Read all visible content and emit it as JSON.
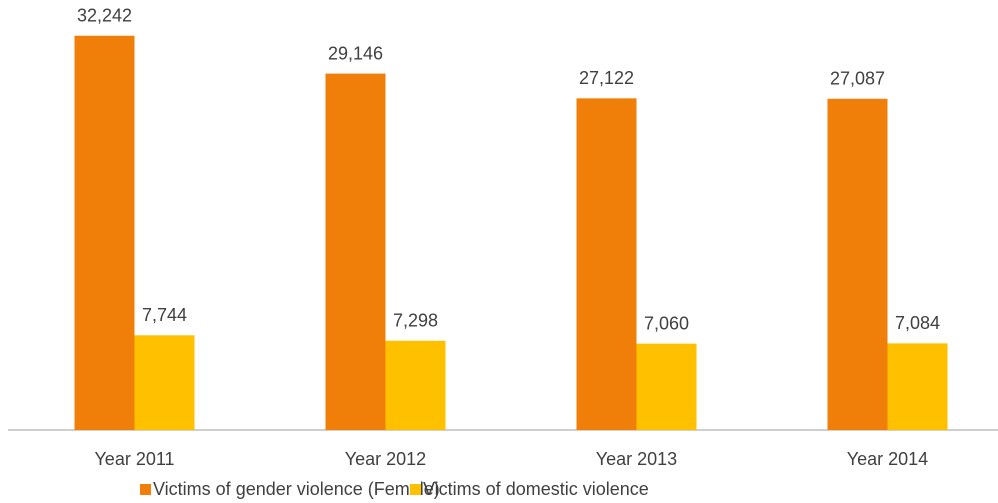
{
  "chart_data": {
    "type": "bar",
    "categories": [
      "Year 2011",
      "Year 2012",
      "Year 2013",
      "Year 2014"
    ],
    "series": [
      {
        "name": "Victims of gender violence (Female)",
        "color": "#f07f09",
        "values": [
          32242,
          29146,
          27122,
          27087
        ],
        "value_labels": [
          "32,242",
          "29,146",
          "27,122",
          "27,087"
        ]
      },
      {
        "name": "Victims of domestic violence",
        "color": "#ffc000",
        "values": [
          7744,
          7298,
          7060,
          7084
        ],
        "value_labels": [
          "7,744",
          "7,298",
          "7,060",
          "7,084"
        ]
      }
    ],
    "ylim": [
      0,
      35000
    ],
    "legend": "bottom"
  }
}
